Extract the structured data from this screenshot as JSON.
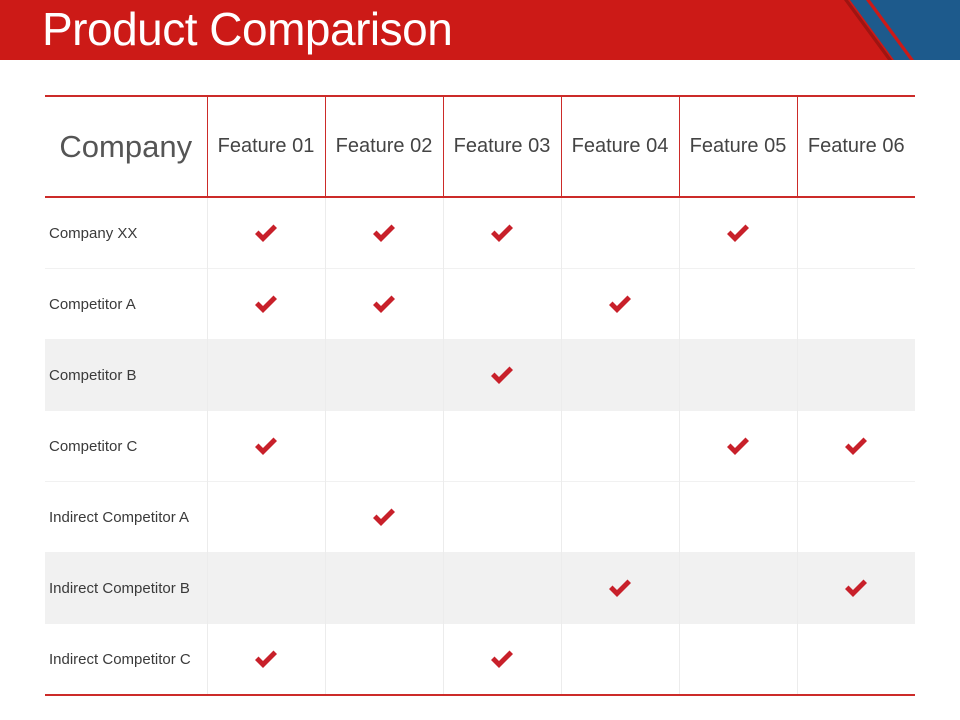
{
  "title": "Product Comparison",
  "colors": {
    "accent_red": "#cc1a17",
    "accent_blue": "#1d5a8c",
    "check": "#c8202a"
  },
  "table": {
    "company_header": "Company",
    "features": [
      "Feature 01",
      "Feature 02",
      "Feature 03",
      "Feature 04",
      "Feature 05",
      "Feature 06"
    ],
    "rows": [
      {
        "name": "Company XX",
        "checks": [
          true,
          true,
          true,
          false,
          true,
          false
        ]
      },
      {
        "name": "Competitor A",
        "checks": [
          true,
          true,
          false,
          true,
          false,
          false
        ]
      },
      {
        "name": "Competitor B",
        "checks": [
          false,
          false,
          true,
          false,
          false,
          false
        ]
      },
      {
        "name": "Competitor C",
        "checks": [
          true,
          false,
          false,
          false,
          true,
          true
        ]
      },
      {
        "name": "Indirect Competitor A",
        "checks": [
          false,
          true,
          false,
          false,
          false,
          false
        ]
      },
      {
        "name": "Indirect Competitor B",
        "checks": [
          false,
          false,
          false,
          true,
          false,
          true
        ]
      },
      {
        "name": "Indirect Competitor C",
        "checks": [
          true,
          false,
          true,
          false,
          false,
          false
        ]
      }
    ],
    "check_icon": "checkmark-icon"
  }
}
